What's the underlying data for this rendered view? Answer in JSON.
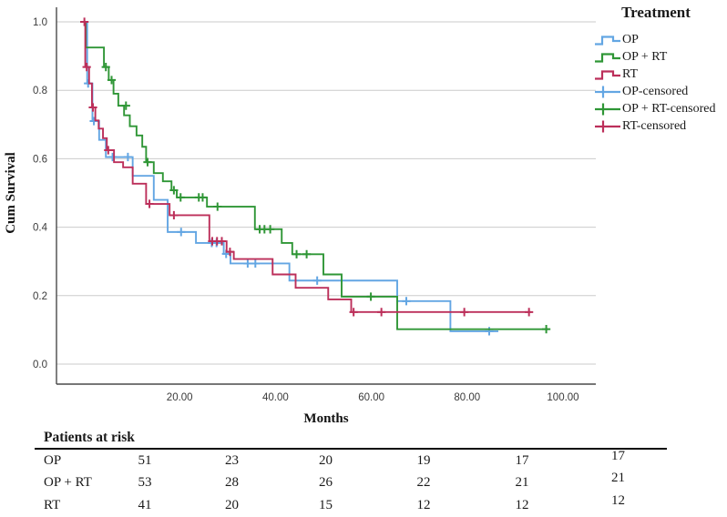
{
  "chart_data": {
    "type": "line",
    "subtype": "kaplan-meier-step-survival",
    "title": "",
    "xlabel": "Months",
    "ylabel": "Cum Survival",
    "xlim": [
      0,
      107
    ],
    "ylim": [
      0.0,
      1.0
    ],
    "grid": true,
    "legend_position": "right",
    "x_ticks": {
      "values": [
        20,
        40,
        60,
        80,
        100
      ],
      "labels": [
        "20.00",
        "40.00",
        "60.00",
        "80.00",
        "100.00"
      ]
    },
    "y_ticks": {
      "values": [
        1.0,
        0.8,
        0.6,
        0.4,
        0.2,
        0.0
      ],
      "labels": [
        "1.0",
        "0.8",
        "0.6",
        "0.4",
        "0.2",
        "0.0"
      ]
    },
    "series": [
      {
        "name": "OP",
        "color": "#63A6E3",
        "steps": [
          [
            0,
            1.0
          ],
          [
            0.7,
            0.82
          ],
          [
            1.8,
            0.71
          ],
          [
            3.2,
            0.655
          ],
          [
            4.6,
            0.605
          ],
          [
            10.2,
            0.55
          ],
          [
            14.6,
            0.48
          ],
          [
            17.5,
            0.386
          ],
          [
            23.4,
            0.354
          ],
          [
            29.2,
            0.322
          ],
          [
            30.6,
            0.294
          ],
          [
            42.9,
            0.244
          ],
          [
            65.4,
            0.184
          ],
          [
            76.5,
            0.096
          ]
        ],
        "end_month": 86.5,
        "censored": [
          [
            0.9,
            0.82
          ],
          [
            2.1,
            0.71
          ],
          [
            6.0,
            0.605
          ],
          [
            9.2,
            0.605
          ],
          [
            20.3,
            0.386
          ],
          [
            26.7,
            0.354
          ],
          [
            27.7,
            0.354
          ],
          [
            29.7,
            0.322
          ],
          [
            34.2,
            0.294
          ],
          [
            35.8,
            0.294
          ],
          [
            48.7,
            0.244
          ],
          [
            67.3,
            0.184
          ],
          [
            84.6,
            0.096
          ]
        ]
      },
      {
        "name": "OP + RT",
        "color": "#2F9636",
        "steps": [
          [
            0,
            1.0
          ],
          [
            0.4,
            0.925
          ],
          [
            4.2,
            0.868
          ],
          [
            5.2,
            0.83
          ],
          [
            6.2,
            0.79
          ],
          [
            7.2,
            0.755
          ],
          [
            8.4,
            0.727
          ],
          [
            9.6,
            0.695
          ],
          [
            11.0,
            0.668
          ],
          [
            12.2,
            0.635
          ],
          [
            13.0,
            0.59
          ],
          [
            14.6,
            0.558
          ],
          [
            16.5,
            0.534
          ],
          [
            18.3,
            0.508
          ],
          [
            19.4,
            0.487
          ],
          [
            25.7,
            0.46
          ],
          [
            35.7,
            0.394
          ],
          [
            41.3,
            0.354
          ],
          [
            43.5,
            0.321
          ],
          [
            50.0,
            0.262
          ],
          [
            53.8,
            0.197
          ],
          [
            65.4,
            0.102
          ]
        ],
        "end_month": 97,
        "censored": [
          [
            4.6,
            0.868
          ],
          [
            5.8,
            0.83
          ],
          [
            8.8,
            0.755
          ],
          [
            13.3,
            0.59
          ],
          [
            18.8,
            0.508
          ],
          [
            20.2,
            0.487
          ],
          [
            24.0,
            0.487
          ],
          [
            24.8,
            0.487
          ],
          [
            27.9,
            0.46
          ],
          [
            36.7,
            0.394
          ],
          [
            37.7,
            0.394
          ],
          [
            38.9,
            0.394
          ],
          [
            44.4,
            0.321
          ],
          [
            46.5,
            0.321
          ],
          [
            59.9,
            0.197
          ],
          [
            96.5,
            0.102
          ]
        ]
      },
      {
        "name": "RT",
        "color": "#BC2F5A",
        "steps": [
          [
            0,
            1.0
          ],
          [
            0.3,
            0.868
          ],
          [
            1.1,
            0.82
          ],
          [
            1.7,
            0.75
          ],
          [
            2.4,
            0.712
          ],
          [
            3.1,
            0.688
          ],
          [
            4.0,
            0.66
          ],
          [
            4.8,
            0.625
          ],
          [
            6.3,
            0.59
          ],
          [
            8.2,
            0.575
          ],
          [
            10.2,
            0.527
          ],
          [
            13.0,
            0.468
          ],
          [
            17.9,
            0.435
          ],
          [
            26.2,
            0.359
          ],
          [
            29.8,
            0.328
          ],
          [
            31.3,
            0.307
          ],
          [
            39.4,
            0.262
          ],
          [
            44.2,
            0.223
          ],
          [
            51.0,
            0.189
          ],
          [
            55.8,
            0.152
          ]
        ],
        "end_month": 93.3,
        "censored": [
          [
            0.12,
            1.0
          ],
          [
            0.6,
            0.868
          ],
          [
            1.9,
            0.75
          ],
          [
            5.1,
            0.625
          ],
          [
            13.7,
            0.468
          ],
          [
            18.8,
            0.435
          ],
          [
            26.8,
            0.359
          ],
          [
            27.8,
            0.359
          ],
          [
            28.8,
            0.359
          ],
          [
            30.5,
            0.328
          ],
          [
            56.3,
            0.152
          ],
          [
            62.1,
            0.152
          ],
          [
            79.4,
            0.152
          ],
          [
            92.9,
            0.152
          ]
        ]
      }
    ]
  },
  "legend": {
    "title": "Treatment",
    "entries": [
      {
        "label": "OP",
        "color": "#63A6E3",
        "glyph": "step-line"
      },
      {
        "label": "OP + RT",
        "color": "#2F9636",
        "glyph": "step-line"
      },
      {
        "label": "RT",
        "color": "#BC2F5A",
        "glyph": "step-line"
      },
      {
        "label": "OP-censored",
        "color": "#63A6E3",
        "glyph": "censor-plus"
      },
      {
        "label": "OP + RT-censored",
        "color": "#2F9636",
        "glyph": "censor-plus"
      },
      {
        "label": "RT-censored",
        "color": "#BC2F5A",
        "glyph": "censor-plus"
      }
    ]
  },
  "risk_table": {
    "title": "Patients at risk",
    "rows": [
      {
        "label": "OP",
        "values": [
          "51",
          "23",
          "20",
          "19",
          "17",
          "17"
        ]
      },
      {
        "label": "OP + RT",
        "values": [
          "53",
          "28",
          "26",
          "22",
          "21",
          "21"
        ]
      },
      {
        "label": "RT",
        "values": [
          "41",
          "20",
          "15",
          "12",
          "12",
          "12"
        ]
      }
    ]
  }
}
